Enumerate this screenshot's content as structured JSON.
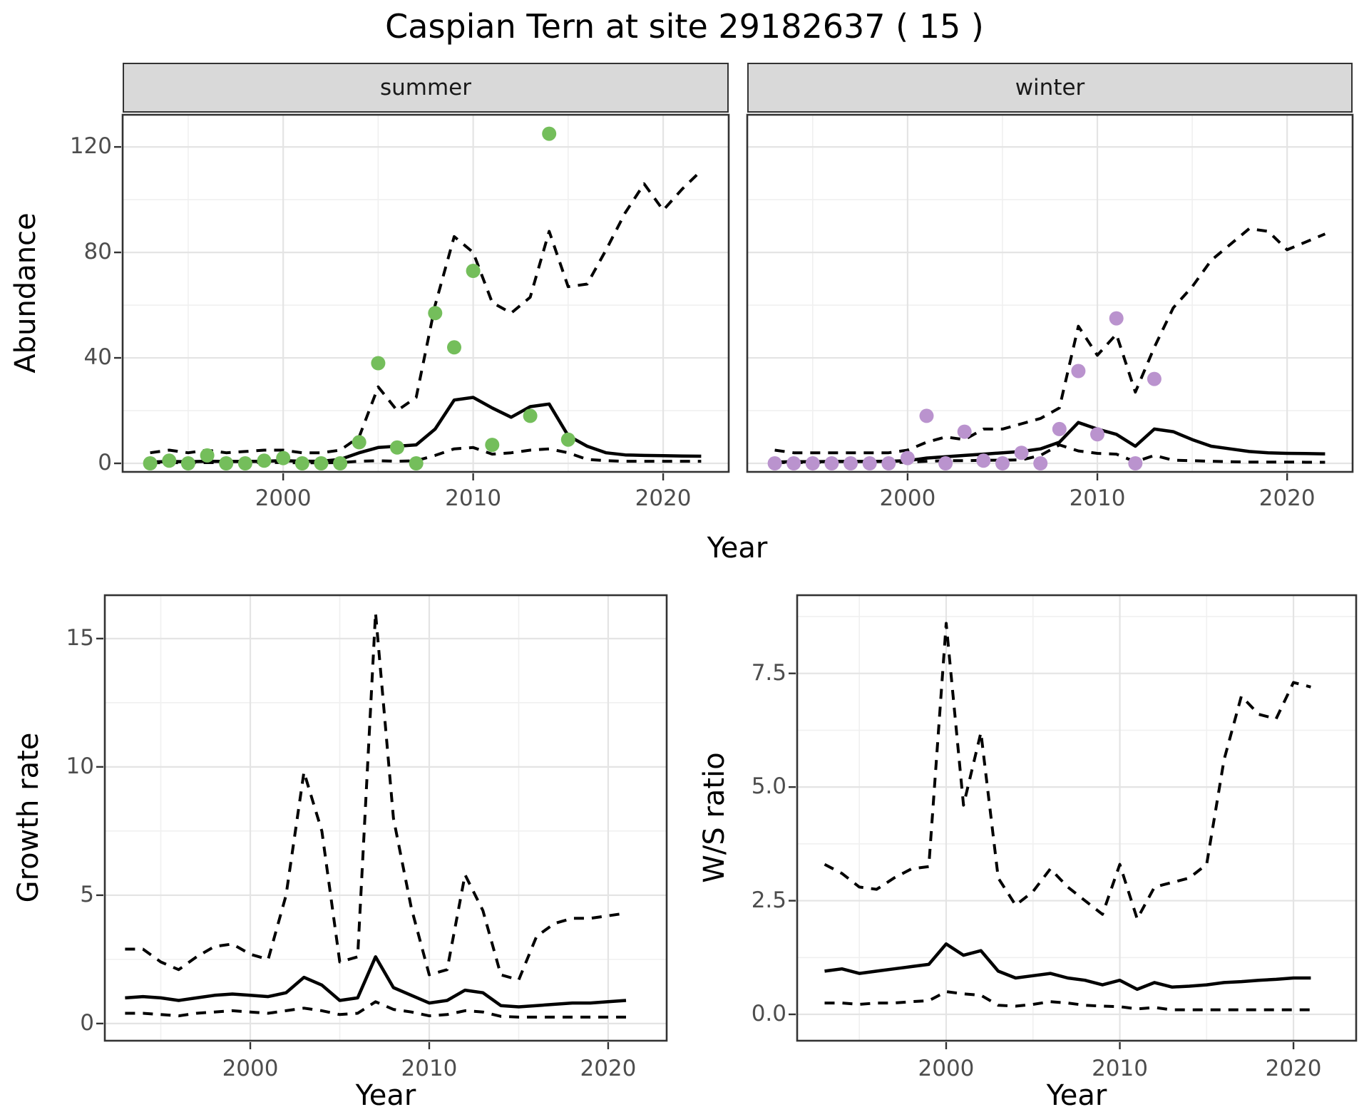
{
  "title": "Caspian Tern at site 29182637 ( 15 )",
  "colors": {
    "summer_point": "#74BE5B",
    "winter_point": "#BA93CE",
    "line": "#000000",
    "strip_bg": "#D9D9D9",
    "strip_border": "#333333",
    "panel_border": "#333333",
    "grid_major": "#E4E4E4",
    "grid_minor": "#F0F0F0",
    "tick_text": "#4D4D4D",
    "axis_title_text": "#000000"
  },
  "chart_data": [
    {
      "name": "abundance-summer",
      "type": "line",
      "facet_label": "summer",
      "xlabel": "Year",
      "ylabel": "Abundance",
      "xlim": [
        1991.55,
        2023.45
      ],
      "ylim": [
        -3.24,
        132.2
      ],
      "x_ticks": [
        2000,
        2010,
        2020
      ],
      "x_tick_labels": [
        "2000",
        "2010",
        "2020"
      ],
      "x_minor": [
        1995,
        2005,
        2015
      ],
      "y_ticks": [
        0,
        40,
        80,
        120
      ],
      "y_tick_labels": [
        "0",
        "40",
        "80",
        "120"
      ],
      "y_minor": [
        20,
        60,
        100
      ],
      "years": [
        1993,
        1994,
        1995,
        1996,
        1997,
        1998,
        1999,
        2000,
        2001,
        2002,
        2003,
        2004,
        2005,
        2006,
        2007,
        2008,
        2009,
        2010,
        2011,
        2012,
        2013,
        2014,
        2015,
        2016,
        2017,
        2018,
        2019,
        2020,
        2021,
        2022
      ],
      "series": [
        {
          "name": "upper-ci",
          "style": "dashed",
          "values": [
            4,
            5,
            4,
            5,
            4,
            4.5,
            5,
            5,
            4,
            4,
            5,
            10,
            29,
            20,
            25,
            60,
            86,
            80,
            61,
            57,
            63,
            88,
            67,
            68,
            81,
            95,
            106,
            96,
            104,
            111
          ]
        },
        {
          "name": "median",
          "style": "solid",
          "values": [
            0.5,
            0.7,
            0.6,
            0.8,
            0.7,
            0.7,
            0.8,
            1,
            0.8,
            0.8,
            1.5,
            4,
            6,
            6.5,
            7,
            13,
            24,
            25,
            21,
            17.5,
            21.5,
            22.5,
            10.5,
            6.5,
            4,
            3.2,
            3,
            2.9,
            2.8,
            2.7
          ]
        },
        {
          "name": "lower-ci",
          "style": "dashed",
          "values": [
            0.2,
            0.3,
            0.2,
            0.3,
            0.2,
            0.2,
            0.3,
            0.3,
            0.2,
            0.2,
            0.3,
            0.8,
            1,
            0.8,
            1,
            3,
            5.5,
            6,
            3.5,
            4,
            5,
            5.5,
            4,
            1.5,
            1,
            0.8,
            0.8,
            0.8,
            0.8,
            0.8
          ]
        }
      ],
      "points": {
        "name": "observed-summer",
        "color_key": "summer_point",
        "x": [
          1993,
          1994,
          1995,
          1996,
          1997,
          1998,
          1999,
          2000,
          2001,
          2002,
          2003,
          2004,
          2005,
          2006,
          2007,
          2008,
          2009,
          2010,
          2011,
          2013,
          2014,
          2015
        ],
        "y": [
          0,
          1,
          0,
          3,
          0,
          0,
          1,
          2,
          0,
          0,
          0,
          8,
          38,
          6,
          0,
          57,
          44,
          73,
          7,
          18,
          125,
          9
        ]
      }
    },
    {
      "name": "abundance-winter",
      "type": "line",
      "facet_label": "winter",
      "xlabel": "Year",
      "ylabel": "",
      "xlim": [
        1991.55,
        2023.45
      ],
      "ylim": [
        -3.24,
        132.2
      ],
      "x_ticks": [
        2000,
        2010,
        2020
      ],
      "x_tick_labels": [
        "2000",
        "2010",
        "2020"
      ],
      "x_minor": [
        1995,
        2005,
        2015
      ],
      "y_ticks": [
        0,
        40,
        80,
        120
      ],
      "y_tick_labels": [],
      "y_minor": [
        20,
        60,
        100
      ],
      "years": [
        1993,
        1994,
        1995,
        1996,
        1997,
        1998,
        1999,
        2000,
        2001,
        2002,
        2003,
        2004,
        2005,
        2006,
        2007,
        2008,
        2009,
        2010,
        2011,
        2012,
        2013,
        2014,
        2015,
        2016,
        2017,
        2018,
        2019,
        2020,
        2021,
        2022
      ],
      "series": [
        {
          "name": "upper-ci",
          "style": "dashed",
          "values": [
            5,
            4,
            4,
            4,
            4,
            4,
            4,
            5,
            8,
            10,
            9,
            13,
            13,
            15,
            17,
            21,
            52,
            41,
            49,
            27,
            44,
            59,
            67,
            77,
            83,
            89,
            88,
            81,
            84,
            87
          ]
        },
        {
          "name": "median",
          "style": "solid",
          "values": [
            0.5,
            0.6,
            0.6,
            0.7,
            0.7,
            0.7,
            0.8,
            1,
            2,
            2.5,
            3,
            3.5,
            4,
            4.5,
            5.5,
            8,
            15.5,
            13,
            11,
            6.5,
            13,
            12,
            9,
            6.5,
            5.5,
            4.5,
            4,
            3.8,
            3.7,
            3.6
          ]
        },
        {
          "name": "lower-ci",
          "style": "dashed",
          "values": [
            0.3,
            0.3,
            0.3,
            0.3,
            0.3,
            0.3,
            0.3,
            0.4,
            0.8,
            1,
            1,
            1.2,
            1.2,
            1.3,
            3,
            7,
            4.7,
            3.8,
            3.5,
            0.6,
            3,
            1.2,
            1,
            0.8,
            0.6,
            0.5,
            0.5,
            0.5,
            0.4,
            0.4
          ]
        }
      ],
      "points": {
        "name": "observed-winter",
        "color_key": "winter_point",
        "x": [
          1993,
          1994,
          1995,
          1996,
          1997,
          1998,
          1999,
          2000,
          2001,
          2002,
          2003,
          2004,
          2005,
          2006,
          2007,
          2008,
          2009,
          2010,
          2011,
          2012,
          2013
        ],
        "y": [
          0,
          0,
          0,
          0,
          0,
          0,
          0,
          2,
          18,
          0,
          12,
          1,
          0,
          4,
          0,
          13,
          35,
          11,
          55,
          0,
          32
        ]
      }
    },
    {
      "name": "growth-rate",
      "type": "line",
      "facet_label": "",
      "xlabel": "Year",
      "ylabel": "Growth rate",
      "xlim": [
        1991.87,
        2023.27
      ],
      "ylim": [
        -0.67,
        16.69
      ],
      "x_ticks": [
        2000,
        2010,
        2020
      ],
      "x_tick_labels": [
        "2000",
        "2010",
        "2020"
      ],
      "x_minor": [
        1995,
        2005,
        2015
      ],
      "y_ticks": [
        0,
        5,
        10,
        15
      ],
      "y_tick_labels": [
        "0",
        "5",
        "10",
        "15"
      ],
      "y_minor": [
        2.5,
        7.5,
        12.5
      ],
      "years": [
        1993,
        1994,
        1995,
        1996,
        1997,
        1998,
        1999,
        2000,
        2001,
        2002,
        2003,
        2004,
        2005,
        2006,
        2007,
        2008,
        2009,
        2010,
        2011,
        2012,
        2013,
        2014,
        2015,
        2016,
        2017,
        2018,
        2019,
        2020,
        2021
      ],
      "series": [
        {
          "name": "upper-ci",
          "style": "dashed",
          "values": [
            2.9,
            2.9,
            2.4,
            2.1,
            2.6,
            3.0,
            3.1,
            2.7,
            2.5,
            5.0,
            9.8,
            7.5,
            2.4,
            2.6,
            16.0,
            8.0,
            4.5,
            1.9,
            2.1,
            5.8,
            4.4,
            1.9,
            1.7,
            3.4,
            3.9,
            4.1,
            4.1,
            4.2,
            4.3
          ]
        },
        {
          "name": "median",
          "style": "solid",
          "values": [
            1.0,
            1.05,
            1.0,
            0.9,
            1.0,
            1.1,
            1.15,
            1.1,
            1.05,
            1.2,
            1.8,
            1.5,
            0.9,
            1.0,
            2.6,
            1.4,
            1.1,
            0.8,
            0.9,
            1.3,
            1.2,
            0.7,
            0.65,
            0.7,
            0.75,
            0.8,
            0.8,
            0.85,
            0.9
          ]
        },
        {
          "name": "lower-ci",
          "style": "dashed",
          "values": [
            0.4,
            0.4,
            0.35,
            0.3,
            0.4,
            0.45,
            0.5,
            0.45,
            0.4,
            0.5,
            0.6,
            0.5,
            0.35,
            0.4,
            0.85,
            0.55,
            0.45,
            0.3,
            0.35,
            0.5,
            0.45,
            0.28,
            0.25,
            0.25,
            0.25,
            0.25,
            0.25,
            0.25,
            0.25
          ]
        }
      ],
      "points": null
    },
    {
      "name": "ws-ratio",
      "type": "line",
      "facet_label": "",
      "xlabel": "Year",
      "ylabel": "W/S ratio",
      "xlim": [
        1991.42,
        2023.61
      ],
      "ylim": [
        -0.58,
        9.22
      ],
      "x_ticks": [
        2000,
        2010,
        2020
      ],
      "x_tick_labels": [
        "2000",
        "2010",
        "2020"
      ],
      "x_minor": [
        1995,
        2005,
        2015
      ],
      "y_ticks": [
        0,
        2.5,
        5,
        7.5
      ],
      "y_tick_labels": [
        "0.0",
        "2.5",
        "5.0",
        "7.5"
      ],
      "y_minor": [
        1.25,
        3.75,
        6.25,
        8.75
      ],
      "years": [
        1993,
        1994,
        1995,
        1996,
        1997,
        1998,
        1999,
        2000,
        2001,
        2002,
        2003,
        2004,
        2005,
        2006,
        2007,
        2008,
        2009,
        2010,
        2011,
        2012,
        2013,
        2014,
        2015,
        2016,
        2017,
        2018,
        2019,
        2020,
        2021
      ],
      "series": [
        {
          "name": "upper-ci",
          "style": "dashed",
          "values": [
            3.3,
            3.1,
            2.8,
            2.75,
            3.0,
            3.2,
            3.25,
            8.6,
            4.6,
            6.2,
            3.0,
            2.4,
            2.7,
            3.2,
            2.8,
            2.5,
            2.2,
            3.3,
            2.1,
            2.8,
            2.9,
            3.0,
            3.3,
            5.6,
            7.0,
            6.6,
            6.5,
            7.3,
            7.2
          ]
        },
        {
          "name": "median",
          "style": "solid",
          "values": [
            0.95,
            1.0,
            0.9,
            0.95,
            1.0,
            1.05,
            1.1,
            1.55,
            1.3,
            1.4,
            0.95,
            0.8,
            0.85,
            0.9,
            0.8,
            0.75,
            0.65,
            0.75,
            0.55,
            0.7,
            0.6,
            0.62,
            0.65,
            0.7,
            0.72,
            0.75,
            0.77,
            0.8,
            0.8
          ]
        },
        {
          "name": "lower-ci",
          "style": "dashed",
          "values": [
            0.25,
            0.25,
            0.22,
            0.25,
            0.25,
            0.28,
            0.3,
            0.5,
            0.45,
            0.42,
            0.2,
            0.18,
            0.22,
            0.28,
            0.25,
            0.2,
            0.18,
            0.17,
            0.12,
            0.15,
            0.1,
            0.1,
            0.1,
            0.1,
            0.1,
            0.1,
            0.1,
            0.1,
            0.1
          ]
        }
      ],
      "points": null
    }
  ]
}
